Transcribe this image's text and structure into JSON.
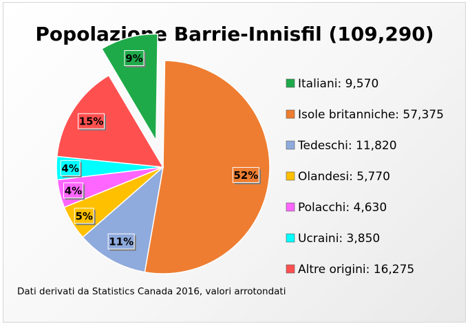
{
  "chart_data": {
    "type": "pie",
    "title": "Popolazione Barrie-Innisfil (109,290)",
    "footnote": "Dati derivati da Statistics Canada 2016, valori arrotondati",
    "legend_position": "right",
    "slices": [
      {
        "legend": "Italiani: 9,570",
        "value": 9570,
        "label": "9%",
        "color": "#1faa4a",
        "exploded": true
      },
      {
        "legend": "Isole britanniche: 57,375",
        "value": 57375,
        "label": "52%",
        "color": "#ee7d31",
        "exploded": false
      },
      {
        "legend": "Tedeschi: 11,820",
        "value": 11820,
        "label": "11%",
        "color": "#8faadc",
        "exploded": false
      },
      {
        "legend": "Olandesi: 5,770",
        "value": 5770,
        "label": "5%",
        "color": "#ffc000",
        "exploded": false
      },
      {
        "legend": "Polacchi: 4,630",
        "value": 4630,
        "label": "4%",
        "color": "#ff66ff",
        "exploded": false
      },
      {
        "legend": "Ucraini: 3,850",
        "value": 3850,
        "label": "4%",
        "color": "#00ffff",
        "exploded": false
      },
      {
        "legend": "Altre origini: 16,275",
        "value": 16275,
        "label": "15%",
        "color": "#ff5050",
        "exploded": false
      }
    ]
  }
}
